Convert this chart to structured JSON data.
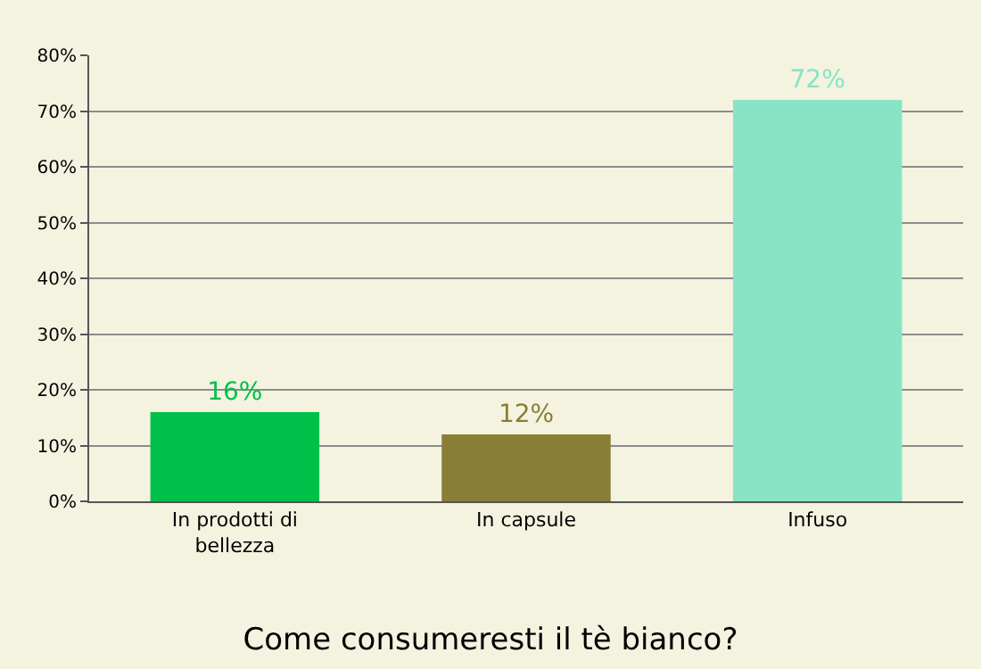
{
  "chart_data": {
    "type": "bar",
    "title": "Come consumeresti il tè bianco?",
    "categories": [
      "In prodotti di bellezza",
      "In capsule",
      "Infuso"
    ],
    "values": [
      16,
      12,
      72
    ],
    "colors": [
      "#00c04a",
      "#8a7d35",
      "#88e4c4"
    ],
    "value_labels": [
      "16%",
      "12%",
      "72%"
    ],
    "ylim": [
      0,
      80
    ],
    "yticks": [
      {
        "value": 0,
        "label": "0%"
      },
      {
        "value": 10,
        "label": "10%"
      },
      {
        "value": 20,
        "label": "20%"
      },
      {
        "value": 30,
        "label": "30%"
      },
      {
        "value": 40,
        "label": "40%"
      },
      {
        "value": 50,
        "label": "50%"
      },
      {
        "value": 60,
        "label": "60%"
      },
      {
        "value": 70,
        "label": "70%"
      },
      {
        "value": 80,
        "label": "80%"
      }
    ],
    "grid": "y"
  }
}
